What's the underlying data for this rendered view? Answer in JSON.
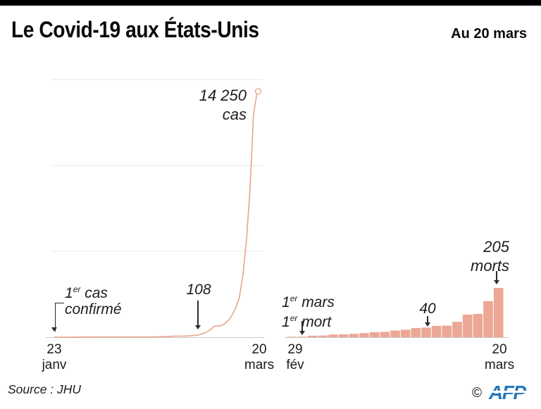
{
  "header": {
    "title": "Le Covid-19 aux États-Unis",
    "date_label": "Au 20 mars"
  },
  "footer": {
    "source": "Source : JHU",
    "copyright": "©",
    "agency": "AFP"
  },
  "colors": {
    "line": "#e9a58a",
    "bar": "#eca795",
    "grid": "#e8e8e8",
    "axis_line": "#c9c9c9",
    "ink": "#1d1d1b",
    "afp_blue": "#2578bd"
  },
  "chart_data": [
    {
      "type": "line",
      "series_unit": "cas",
      "x_range": [
        "23 janv",
        "20 mars"
      ],
      "x_frequency": "daily",
      "ylim": [
        0,
        15000
      ],
      "gridlines": [
        5000,
        10000,
        15000
      ],
      "grid": "horizontal-only, unlabeled",
      "legend": "none",
      "values": [
        1,
        1,
        2,
        2,
        5,
        5,
        5,
        5,
        7,
        8,
        8,
        11,
        11,
        11,
        12,
        12,
        12,
        12,
        12,
        13,
        13,
        13,
        13,
        13,
        13,
        13,
        13,
        14,
        15,
        15,
        15,
        35,
        35,
        53,
        57,
        60,
        62,
        68,
        75,
        100,
        108,
        160,
        225,
        320,
        450,
        650,
        660,
        680,
        800,
        1000,
        1300,
        1700,
        2300,
        3600,
        5600,
        8600,
        13000,
        14250
      ],
      "annotations": {
        "peak": {
          "value": "14 250",
          "unit": "cas"
        },
        "first_case": {
          "num": "1",
          "sup": "er",
          "rest": " cas",
          "line2": "confirmé"
        },
        "milestone": {
          "label": "108"
        }
      },
      "x_axis": {
        "start_day": "23",
        "start_month": "janv",
        "end_day": "20",
        "end_month": "mars"
      }
    },
    {
      "type": "bar",
      "series_unit": "morts",
      "x_range": [
        "29 fév",
        "20 mars"
      ],
      "x_frequency": "daily",
      "ylim": [
        0,
        205
      ],
      "grid": "off",
      "legend": "none",
      "values": [
        1,
        1,
        6,
        7,
        11,
        12,
        14,
        17,
        21,
        22,
        28,
        31,
        38,
        40,
        47,
        48,
        64,
        94,
        97,
        150,
        205
      ],
      "annotations": {
        "first_death": {
          "l1num": "1",
          "l1sup": "er",
          "l1rest": " mars",
          "l2num": "1",
          "l2sup": "er",
          "l2rest": " mort"
        },
        "milestone": {
          "label": "40"
        },
        "peak": {
          "value": "205",
          "unit": "morts"
        }
      },
      "x_axis": {
        "start_day": "29",
        "start_month": "fév",
        "end_day": "20",
        "end_month": "mars"
      }
    }
  ]
}
